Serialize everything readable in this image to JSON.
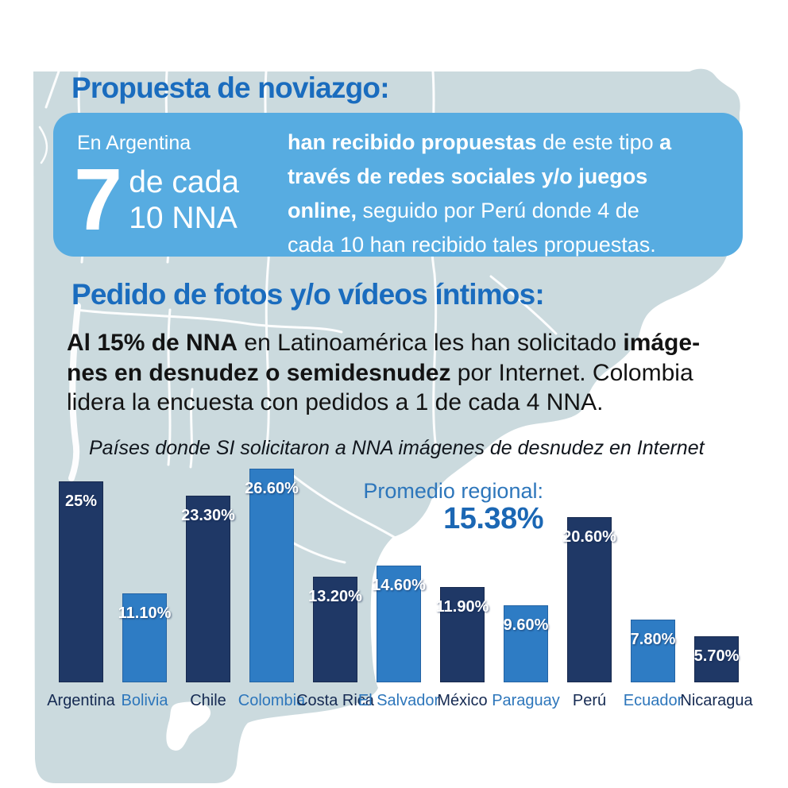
{
  "colors": {
    "map_fill": "#cbdade",
    "callout_blue": "#57ace1",
    "title_blue": "#1a6cbe",
    "promedio_label_blue": "#2d76bb",
    "promedio_value_blue": "#1b67b4",
    "bar_dark": "#1f3866",
    "bar_light": "#2e7cc4",
    "country_label_dark": "#152a52",
    "country_label_light": "#2d76bb"
  },
  "section_noviazgo": {
    "title": "Propuesta de noviazgo:",
    "stat_location": "En Argentina",
    "stat_number": "7",
    "stat_line1": "de cada",
    "stat_line2": "10 NNA",
    "description_lines": [
      [
        {
          "t": "han recibido propuestas",
          "b": true
        },
        {
          "t": " de este tipo ",
          "b": false
        },
        {
          "t": "a",
          "b": true
        }
      ],
      [
        {
          "t": "través de redes sociales y/o juegos",
          "b": true
        }
      ],
      [
        {
          "t": "online,",
          "b": true
        },
        {
          "t": " seguido por Perú donde 4 de",
          "b": false
        }
      ],
      [
        {
          "t": "cada 10 han recibido tales propuestas.",
          "b": false
        }
      ]
    ]
  },
  "section_fotos": {
    "title": "Pedido de fotos y/o vídeos íntimos:",
    "paragraph_lines": [
      [
        {
          "t": "Al 15% de NNA",
          "b": true
        },
        {
          "t": " en Latinoamérica les han solicitado ",
          "b": false
        },
        {
          "t": "imáge-",
          "b": true
        }
      ],
      [
        {
          "t": "nes en desnudez o semidesnudez",
          "b": true
        },
        {
          "t": " por Internet. Colombia",
          "b": false
        }
      ],
      [
        {
          "t": "lidera la encuesta con pedidos a 1 de cada 4 NNA.",
          "b": false
        }
      ]
    ],
    "chart_caption": "Países donde SI solicitaron a NNA imágenes de desnudez en Internet"
  },
  "chart_data": {
    "type": "bar",
    "title": "Países donde SI solicitaron a NNA imágenes de desnudez en Internet",
    "xlabel": "",
    "ylabel": "",
    "ylim": [
      0,
      28
    ],
    "grid": false,
    "legend_position": "none",
    "annotation": {
      "label": "Promedio regional:",
      "value": "15.38%"
    },
    "categories": [
      "Argentina",
      "Bolivia",
      "Chile",
      "Colombia",
      "Costa Rica",
      "El Salvador",
      "México",
      "Paraguay",
      "Perú",
      "Ecuador",
      "Nicaragua"
    ],
    "values": [
      25.0,
      11.1,
      23.3,
      26.6,
      13.2,
      14.6,
      11.9,
      9.6,
      20.6,
      7.8,
      5.7
    ],
    "bars": [
      {
        "country": "Argentina",
        "value": 25.0,
        "label": "25%",
        "tone": "dark"
      },
      {
        "country": "Bolivia",
        "value": 11.1,
        "label": "11.10%",
        "tone": "light"
      },
      {
        "country": "Chile",
        "value": 23.3,
        "label": "23.30%",
        "tone": "dark"
      },
      {
        "country": "Colombia",
        "value": 26.6,
        "label": "26.60%",
        "tone": "light"
      },
      {
        "country": "Costa Rica",
        "value": 13.2,
        "label": "13.20%",
        "tone": "dark"
      },
      {
        "country": "El Salvador",
        "value": 14.6,
        "label": "14.60%",
        "tone": "light"
      },
      {
        "country": "México",
        "value": 11.9,
        "label": "11.90%",
        "tone": "dark"
      },
      {
        "country": "Paraguay",
        "value": 9.6,
        "label": "9.60%",
        "tone": "light"
      },
      {
        "country": "Perú",
        "value": 20.6,
        "label": "20.60%",
        "tone": "dark"
      },
      {
        "country": "Ecuador",
        "value": 7.8,
        "label": "7.80%",
        "tone": "light"
      },
      {
        "country": "Nicaragua",
        "value": 5.7,
        "label": "5.70%",
        "tone": "dark"
      }
    ]
  }
}
